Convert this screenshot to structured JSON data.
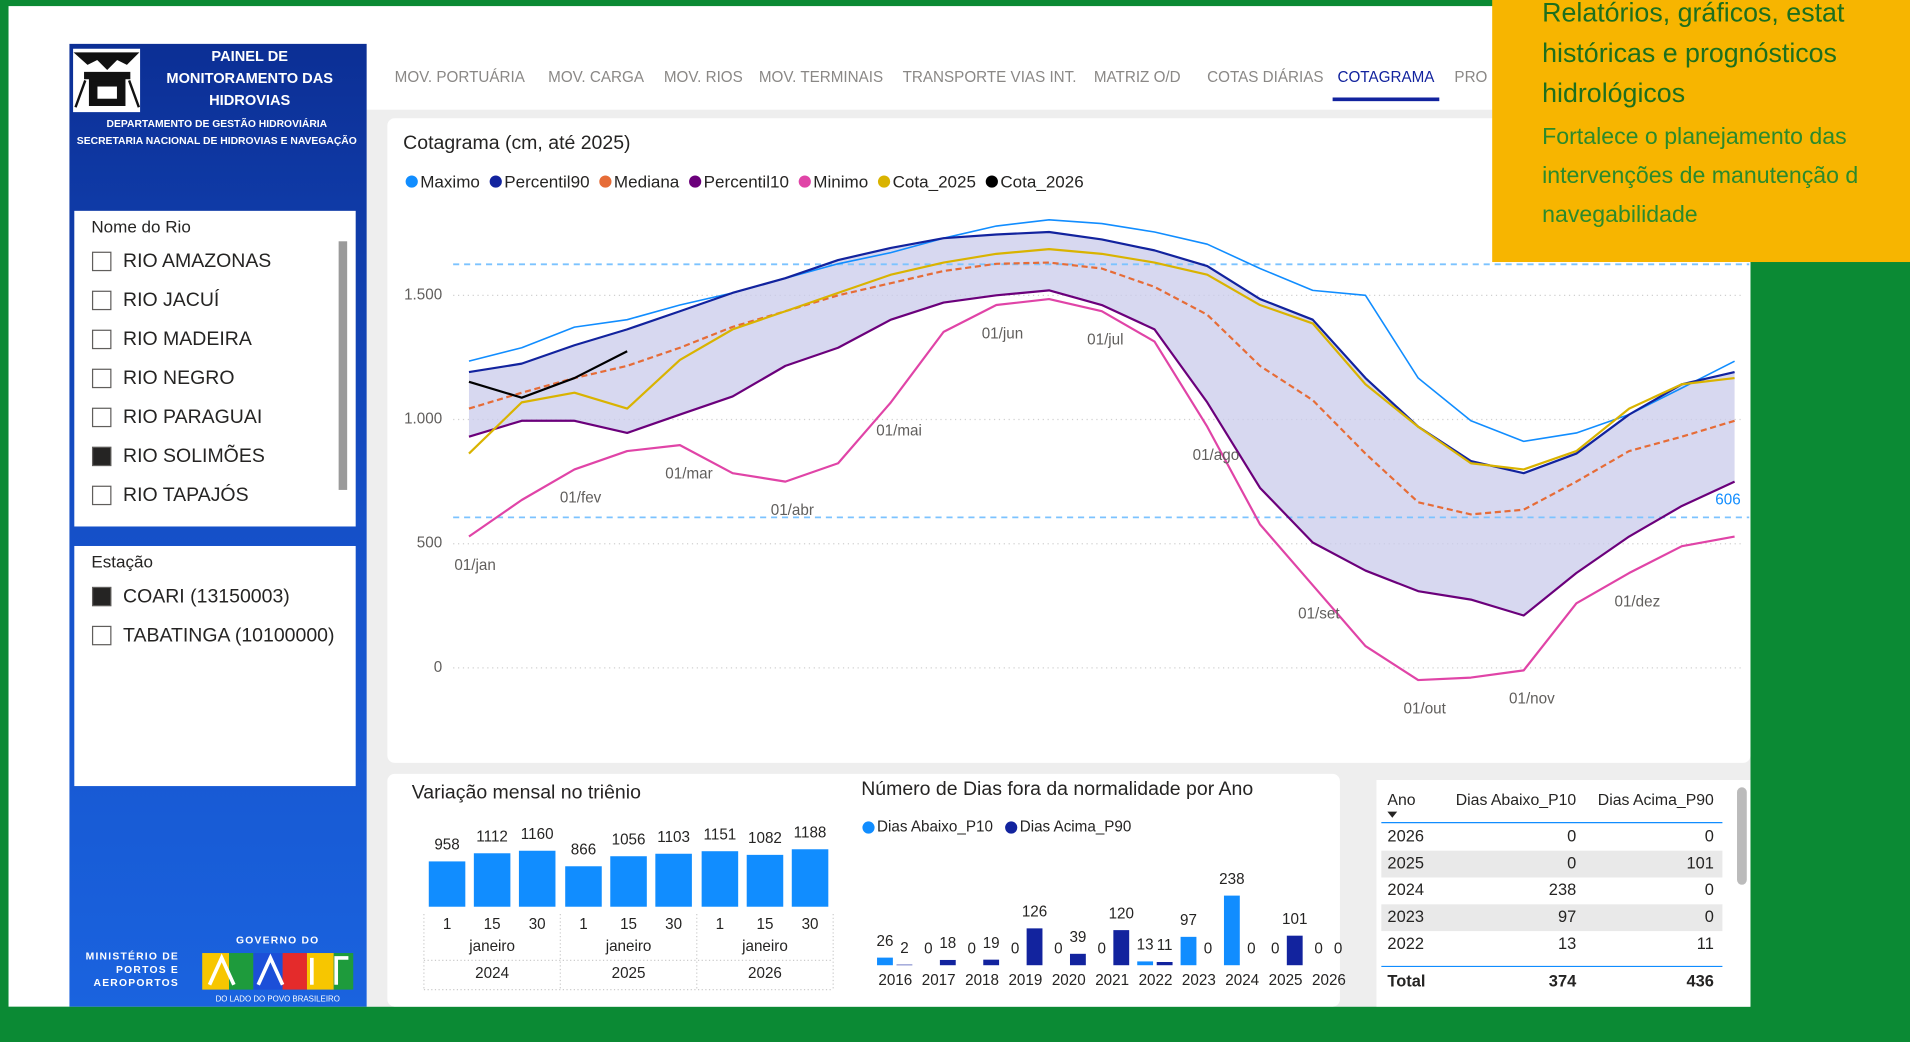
{
  "callout": {
    "lines": [
      "Relatórios, gráficos, estat",
      "históricas e  prognósticos",
      "hidrológicos",
      "Fortalece o planejamento das",
      "intervenções de manutenção d",
      "navegabilidade"
    ]
  },
  "sidebar": {
    "title": [
      "PAINEL DE",
      "MONITORAMENTO DAS",
      "HIDROVIAS"
    ],
    "subtitle": [
      "DEPARTAMENTO DE GESTÃO HIDROVIÁRIA",
      "SECRETARIA NACIONAL DE HIDROVIAS E NAVEGAÇÃO"
    ],
    "rivers": {
      "title": "Nome do Rio",
      "items": [
        "RIO AMAZONAS",
        "RIO JACUÍ",
        "RIO MADEIRA",
        "RIO NEGRO",
        "RIO PARAGUAI",
        "RIO SOLIMÕES",
        "RIO TAPAJÓS"
      ],
      "checked": 5
    },
    "stations": {
      "title": "Estação",
      "items": [
        "COARI (13150003)",
        "TABATINGA (10100000)"
      ],
      "checked": 0
    },
    "footer": {
      "ministry": [
        "MINISTÉRIO DE",
        "PORTOS E",
        "AEROPORTOS"
      ],
      "government": "GOVERNO DO",
      "slogan": "DO LADO DO POVO BRASILEIRO"
    }
  },
  "tabs": {
    "items": [
      "MOV. PORTUÁRIA",
      "MOV. CARGA",
      "MOV. RIOS",
      "MOV. TERMINAIS",
      "TRANSPORTE VIAS INT.",
      "MATRIZ O/D",
      "COTAS DIÁRIAS",
      "COTAGRAMA",
      "PRO"
    ],
    "active": 7
  },
  "cotagrama": {
    "type": "line",
    "title": "Cotagrama (cm, até 2025)",
    "categories": [
      "01/jan",
      null,
      "01/fev",
      null,
      "01/mar",
      null,
      "01/abr",
      null,
      "01/mai",
      null,
      "01/jun",
      null,
      "01/jul",
      null,
      "01/ago",
      null,
      "01/set",
      null,
      "01/out",
      null,
      "01/nov",
      null,
      "01/dez",
      null,
      null
    ],
    "series": [
      {
        "name": "Maximo",
        "color": "#118dff",
        "values": [
          1235,
          1289,
          1372,
          1402,
          1461,
          1510,
          1569,
          1627,
          1672,
          1730,
          1779,
          1804,
          1789,
          1755,
          1706,
          1608,
          1520,
          1500,
          1167,
          995,
          912,
          946,
          1020,
          1127,
          1235
        ]
      },
      {
        "name": "Percentil90",
        "color": "#12239e",
        "values": [
          1191,
          1225,
          1299,
          1363,
          1436,
          1510,
          1569,
          1642,
          1691,
          1730,
          1745,
          1755,
          1725,
          1681,
          1618,
          1485,
          1402,
          1167,
          971,
          833,
          784,
          863,
          1020,
          1142,
          1191
        ]
      },
      {
        "name": "Mediana",
        "color": "#e66c37",
        "dashed": true,
        "values": [
          1044,
          1108,
          1167,
          1216,
          1289,
          1373,
          1436,
          1500,
          1549,
          1598,
          1627,
          1632,
          1608,
          1534,
          1422,
          1216,
          1078,
          863,
          667,
          618,
          637,
          750,
          873,
          931,
          995
        ]
      },
      {
        "name": "Percentil10",
        "color": "#6b007b",
        "values": [
          931,
          995,
          995,
          946,
          1020,
          1093,
          1216,
          1289,
          1402,
          1471,
          1500,
          1520,
          1461,
          1363,
          1069,
          725,
          505,
          392,
          309,
          275,
          211,
          382,
          529,
          652,
          750
        ]
      },
      {
        "name": "Minimo",
        "color": "#e044a7",
        "values": [
          529,
          676,
          799,
          873,
          897,
          784,
          750,
          824,
          1069,
          1353,
          1461,
          1485,
          1436,
          1314,
          971,
          578,
          333,
          88,
          -49,
          -39,
          -10,
          260,
          382,
          490,
          529
        ]
      },
      {
        "name": "Cota_2025",
        "color": "#d9b300",
        "values": [
          863,
          1069,
          1108,
          1044,
          1240,
          1363,
          1436,
          1510,
          1583,
          1632,
          1667,
          1686,
          1667,
          1632,
          1583,
          1461,
          1387,
          1142,
          971,
          824,
          799,
          873,
          1044,
          1142,
          1167
        ]
      },
      {
        "name": "Cota_2026",
        "color": "#000000",
        "values": [
          1152,
          1088,
          1167,
          1275,
          null,
          null,
          null,
          null,
          null,
          null,
          null,
          null,
          null,
          null,
          null,
          null,
          null,
          null,
          null,
          null,
          null,
          null,
          null,
          null,
          null
        ]
      }
    ],
    "band_color": "#c9cbeb",
    "ylim": [
      -250,
      1850
    ],
    "yticks": [
      0,
      500,
      {
        "value": 1000,
        "label": "1.000"
      },
      {
        "value": 1500,
        "label": "1.500"
      }
    ],
    "grid": true,
    "reference_lines": [
      606,
      1625
    ],
    "reference_color": "#7cc3ff"
  },
  "monthly": {
    "type": "bar",
    "title": "Variação mensal no triênio",
    "days": [
      "1",
      "15",
      "30",
      "1",
      "15",
      "30",
      "1",
      "15",
      "30"
    ],
    "months": [
      "janeiro",
      "janeiro",
      "janeiro"
    ],
    "years": [
      "2024",
      "2025",
      "2026"
    ],
    "values": [
      958,
      1112,
      1160,
      866,
      1056,
      1103,
      1151,
      1082,
      1188
    ],
    "color": "#118dff",
    "ylim": [
      100,
      1300
    ]
  },
  "days_out": {
    "type": "bar",
    "title": "Número de Dias fora da normalidade por Ano",
    "categories": [
      "2016",
      "2017",
      "2018",
      "2019",
      "2020",
      "2021",
      "2022",
      "2023",
      "2024",
      "2025",
      "2026"
    ],
    "series": [
      {
        "name": "Dias Abaixo_P10",
        "color": "#118dff",
        "values": [
          26,
          0,
          0,
          0,
          0,
          0,
          13,
          97,
          238,
          0,
          0
        ]
      },
      {
        "name": "Dias Acima_P90",
        "color": "#12239e",
        "values": [
          2,
          18,
          19,
          126,
          39,
          120,
          11,
          0,
          0,
          101,
          0
        ]
      }
    ],
    "ylim": [
      0,
      250
    ]
  },
  "table": {
    "columns": [
      "Ano",
      "Dias Abaixo_P10",
      "Dias Acima_P90"
    ],
    "rows": [
      [
        "2026",
        0,
        0
      ],
      [
        "2025",
        0,
        101
      ],
      [
        "2024",
        238,
        0
      ],
      [
        "2023",
        97,
        0
      ],
      [
        "2022",
        13,
        11
      ]
    ],
    "total": [
      "Total",
      374,
      436
    ]
  }
}
